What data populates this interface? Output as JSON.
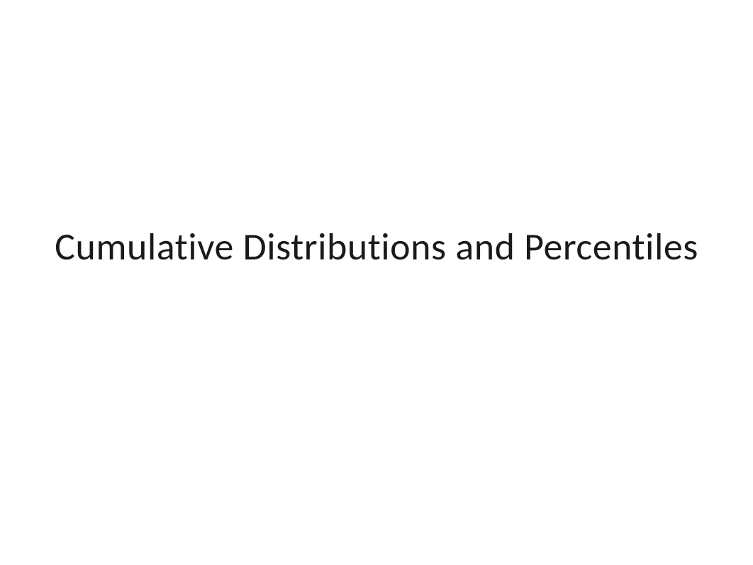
{
  "slide": {
    "title": "Cumulative Distributions and Percentiles",
    "title_fontsize": 54,
    "title_color": "#1a1a1a",
    "background_color": "#ffffff",
    "font_family": "Calibri"
  }
}
